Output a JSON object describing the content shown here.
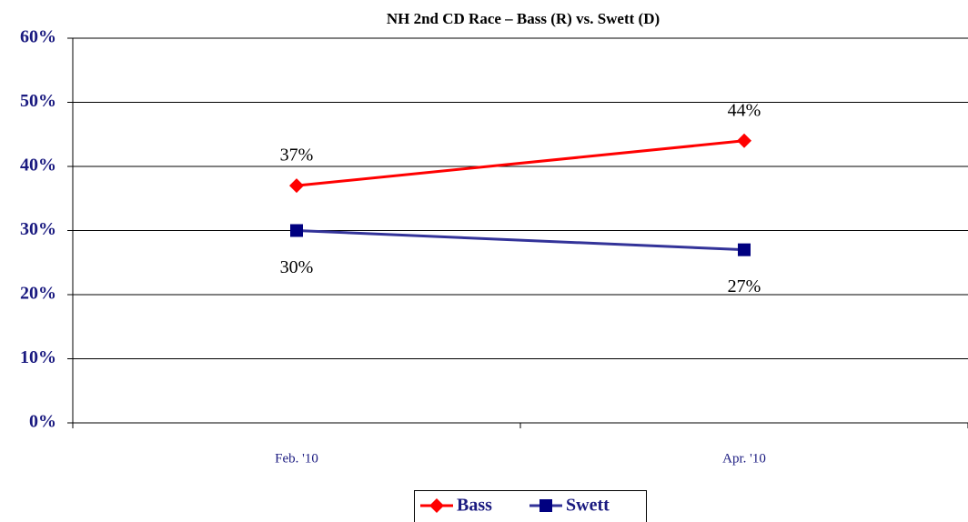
{
  "chart_data": {
    "type": "line",
    "title": "NH 2nd CD Race – Bass (R) vs. Swett (D)",
    "categories": [
      "Feb. '10",
      "Apr. '10"
    ],
    "series": [
      {
        "name": "Bass",
        "color": "#ff0000",
        "marker": "diamond",
        "values": [
          37,
          44
        ],
        "value_labels": [
          "37%",
          "44%"
        ],
        "label_position": "above"
      },
      {
        "name": "Swett",
        "color": "#333399",
        "marker": "square",
        "values": [
          30,
          27
        ],
        "value_labels": [
          "30%",
          "27%"
        ],
        "label_position": "below"
      }
    ],
    "ylim": [
      0,
      60
    ],
    "yticks": [
      {
        "value": 0,
        "label": "0%"
      },
      {
        "value": 10,
        "label": "10%"
      },
      {
        "value": 20,
        "label": "20%"
      },
      {
        "value": 30,
        "label": "30%"
      },
      {
        "value": 40,
        "label": "40%"
      },
      {
        "value": 50,
        "label": "50%"
      },
      {
        "value": 60,
        "label": "60%"
      }
    ],
    "grid": true,
    "legend": "bottom"
  }
}
